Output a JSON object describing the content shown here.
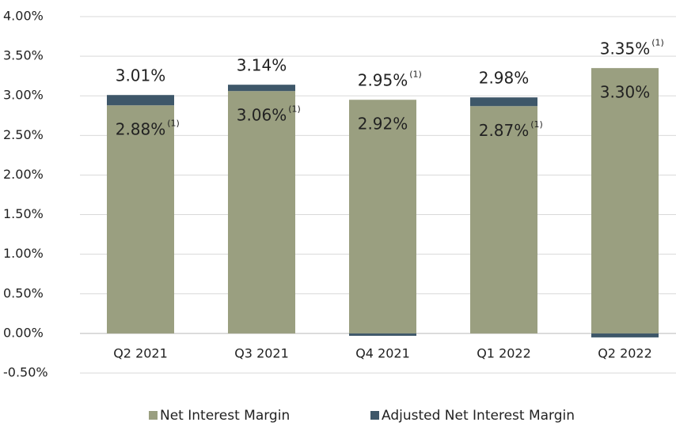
{
  "chart_data": {
    "type": "stacked_bar",
    "categories": [
      "Q2 2021",
      "Q3 2021",
      "Q4 2021",
      "Q1 2022",
      "Q2 2022"
    ],
    "series": [
      {
        "name": "Net Interest Margin",
        "color": "#9a9f80",
        "values": [
          2.88,
          3.06,
          2.95,
          2.87,
          3.35
        ]
      },
      {
        "name": "Adjusted Net Interest Margin",
        "color": "#3e5769",
        "values": [
          0.13,
          0.08,
          -0.03,
          0.11,
          -0.05
        ]
      }
    ],
    "lower_labels": {
      "values": [
        2.88,
        3.06,
        2.92,
        2.87,
        3.3
      ],
      "value_labels": [
        "2.88%",
        "3.06%",
        "2.92%",
        "2.87%",
        "3.30%"
      ]
    },
    "upper_labels": {
      "values": [
        3.01,
        3.14,
        2.95,
        2.98,
        3.35
      ],
      "value_labels": [
        "3.01%",
        "3.14%",
        "2.95%",
        "2.98%",
        "3.35%"
      ]
    },
    "footnote": "(1)",
    "footnote_on": [
      "lower",
      "lower",
      "upper",
      "lower",
      "upper"
    ],
    "ylim": [
      -0.5,
      4.0
    ],
    "yticks": [
      {
        "value": -0.5,
        "label": "-0.50%"
      },
      {
        "value": 0,
        "label": "0.00%"
      },
      {
        "value": 0.5,
        "label": "0.50%"
      },
      {
        "value": 1,
        "label": "1.00%"
      },
      {
        "value": 1.5,
        "label": "1.50%"
      },
      {
        "value": 2,
        "label": "2.00%"
      },
      {
        "value": 2.5,
        "label": "2.50%"
      },
      {
        "value": 3,
        "label": "3.00%"
      },
      {
        "value": 3.5,
        "label": "3.50%"
      },
      {
        "value": 4,
        "label": "4.00%"
      }
    ],
    "grid": true,
    "legend": "bottom"
  }
}
